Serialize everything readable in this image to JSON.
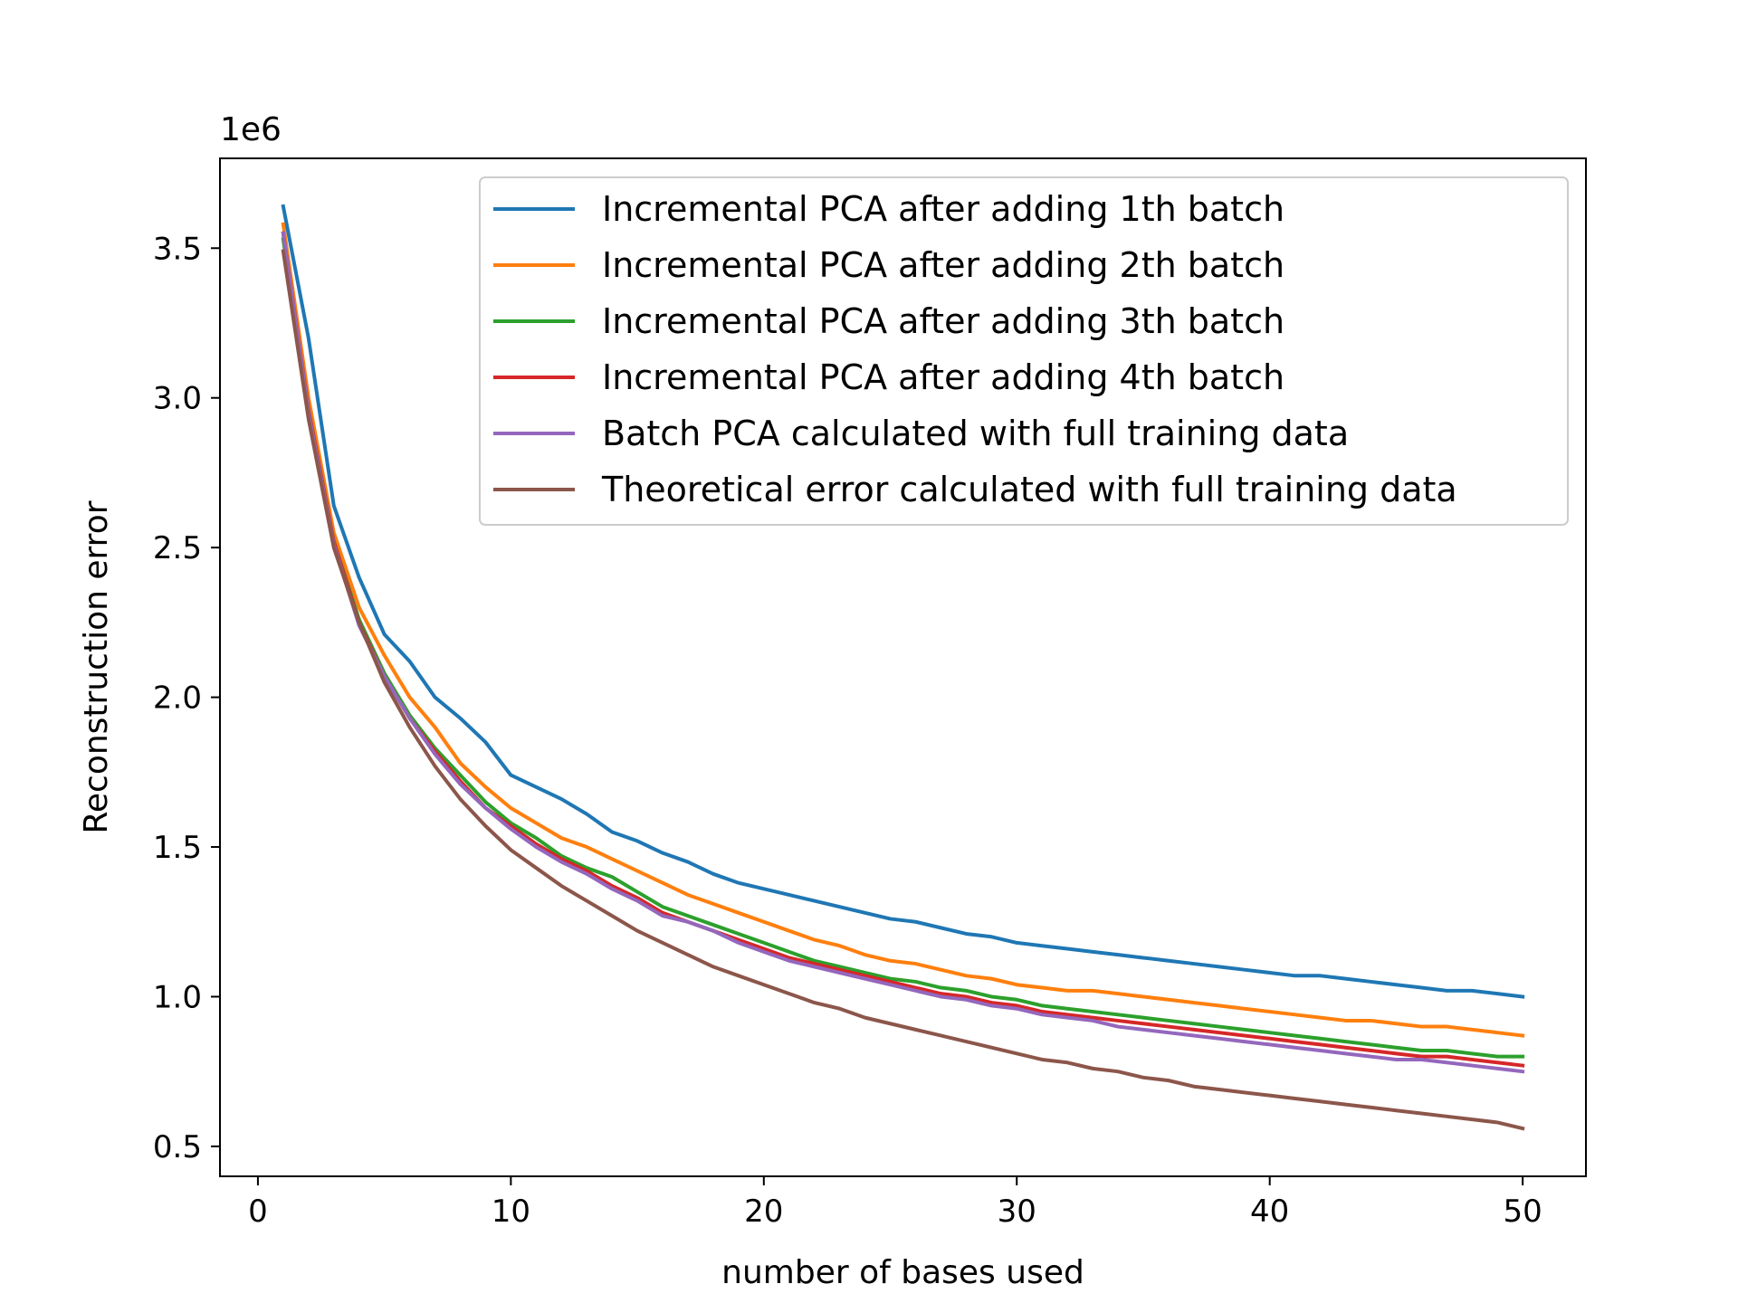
{
  "chart_data": {
    "type": "line",
    "title": "",
    "xlabel": "number of bases used",
    "ylabel": "Reconstruction error",
    "y_offset_label": "1e6",
    "xlim": [
      -1.5,
      52.5
    ],
    "ylim": [
      0.4,
      3.8
    ],
    "xticks": [
      0,
      10,
      20,
      30,
      40,
      50
    ],
    "xtick_labels": [
      "0",
      "10",
      "20",
      "30",
      "40",
      "50"
    ],
    "yticks": [
      0.5,
      1.0,
      1.5,
      2.0,
      2.5,
      3.0,
      3.5
    ],
    "ytick_labels": [
      "0.5",
      "1.0",
      "1.5",
      "2.0",
      "2.5",
      "3.0",
      "3.5"
    ],
    "y_scale_note": "values in units of 1e6",
    "grid": false,
    "legend_position": "upper-right",
    "x": [
      1,
      2,
      3,
      4,
      5,
      6,
      7,
      8,
      9,
      10,
      11,
      12,
      13,
      14,
      15,
      16,
      17,
      18,
      19,
      20,
      21,
      22,
      23,
      24,
      25,
      26,
      27,
      28,
      29,
      30,
      31,
      32,
      33,
      34,
      35,
      36,
      37,
      38,
      39,
      40,
      41,
      42,
      43,
      44,
      45,
      46,
      47,
      48,
      49,
      50
    ],
    "series": [
      {
        "name": "Incremental PCA after adding 1th batch",
        "color": "#1f77b4",
        "values": [
          3.64,
          3.2,
          2.64,
          2.4,
          2.21,
          2.12,
          2.0,
          1.93,
          1.85,
          1.74,
          1.7,
          1.66,
          1.61,
          1.55,
          1.52,
          1.48,
          1.45,
          1.41,
          1.38,
          1.36,
          1.34,
          1.32,
          1.3,
          1.28,
          1.26,
          1.25,
          1.23,
          1.21,
          1.2,
          1.18,
          1.17,
          1.16,
          1.15,
          1.14,
          1.13,
          1.12,
          1.11,
          1.1,
          1.09,
          1.08,
          1.07,
          1.07,
          1.06,
          1.05,
          1.04,
          1.03,
          1.02,
          1.02,
          1.01,
          1.0
        ]
      },
      {
        "name": "Incremental PCA after adding 2th batch",
        "color": "#ff7f0e",
        "values": [
          3.58,
          3.0,
          2.55,
          2.3,
          2.14,
          2.0,
          1.9,
          1.78,
          1.7,
          1.63,
          1.58,
          1.53,
          1.5,
          1.46,
          1.42,
          1.38,
          1.34,
          1.31,
          1.28,
          1.25,
          1.22,
          1.19,
          1.17,
          1.14,
          1.12,
          1.11,
          1.09,
          1.07,
          1.06,
          1.04,
          1.03,
          1.02,
          1.02,
          1.01,
          1.0,
          0.99,
          0.98,
          0.97,
          0.96,
          0.95,
          0.94,
          0.93,
          0.92,
          0.92,
          0.91,
          0.9,
          0.9,
          0.89,
          0.88,
          0.87
        ]
      },
      {
        "name": "Incremental PCA after adding 3th batch",
        "color": "#2ca02c",
        "values": [
          3.53,
          2.96,
          2.52,
          2.26,
          2.08,
          1.94,
          1.83,
          1.74,
          1.65,
          1.58,
          1.53,
          1.47,
          1.43,
          1.4,
          1.35,
          1.3,
          1.27,
          1.24,
          1.21,
          1.18,
          1.15,
          1.12,
          1.1,
          1.08,
          1.06,
          1.05,
          1.03,
          1.02,
          1.0,
          0.99,
          0.97,
          0.96,
          0.95,
          0.94,
          0.93,
          0.92,
          0.91,
          0.9,
          0.89,
          0.88,
          0.87,
          0.86,
          0.85,
          0.84,
          0.83,
          0.82,
          0.82,
          0.81,
          0.8,
          0.8
        ]
      },
      {
        "name": "Incremental PCA after adding 4th batch",
        "color": "#d62728",
        "values": [
          3.55,
          2.96,
          2.52,
          2.25,
          2.07,
          1.93,
          1.82,
          1.72,
          1.63,
          1.57,
          1.51,
          1.46,
          1.42,
          1.37,
          1.33,
          1.28,
          1.25,
          1.22,
          1.19,
          1.16,
          1.13,
          1.11,
          1.09,
          1.07,
          1.05,
          1.03,
          1.01,
          1.0,
          0.98,
          0.97,
          0.95,
          0.94,
          0.93,
          0.92,
          0.91,
          0.9,
          0.89,
          0.88,
          0.87,
          0.86,
          0.85,
          0.84,
          0.83,
          0.82,
          0.81,
          0.8,
          0.8,
          0.79,
          0.78,
          0.77
        ]
      },
      {
        "name": "Batch PCA calculated with full training data",
        "color": "#9467bd",
        "values": [
          3.55,
          2.95,
          2.51,
          2.24,
          2.07,
          1.93,
          1.81,
          1.71,
          1.63,
          1.56,
          1.5,
          1.45,
          1.41,
          1.36,
          1.32,
          1.27,
          1.25,
          1.22,
          1.18,
          1.15,
          1.12,
          1.1,
          1.08,
          1.06,
          1.04,
          1.02,
          1.0,
          0.99,
          0.97,
          0.96,
          0.94,
          0.93,
          0.92,
          0.9,
          0.89,
          0.88,
          0.87,
          0.86,
          0.85,
          0.84,
          0.83,
          0.82,
          0.81,
          0.8,
          0.79,
          0.79,
          0.78,
          0.77,
          0.76,
          0.75
        ]
      },
      {
        "name": "Theoretical error calculated with full training data",
        "color": "#8c564b",
        "values": [
          3.49,
          2.93,
          2.5,
          2.25,
          2.05,
          1.9,
          1.77,
          1.66,
          1.57,
          1.49,
          1.43,
          1.37,
          1.32,
          1.27,
          1.22,
          1.18,
          1.14,
          1.1,
          1.07,
          1.04,
          1.01,
          0.98,
          0.96,
          0.93,
          0.91,
          0.89,
          0.87,
          0.85,
          0.83,
          0.81,
          0.79,
          0.78,
          0.76,
          0.75,
          0.73,
          0.72,
          0.7,
          0.69,
          0.68,
          0.67,
          0.66,
          0.65,
          0.64,
          0.63,
          0.62,
          0.61,
          0.6,
          0.59,
          0.58,
          0.56
        ]
      }
    ]
  }
}
